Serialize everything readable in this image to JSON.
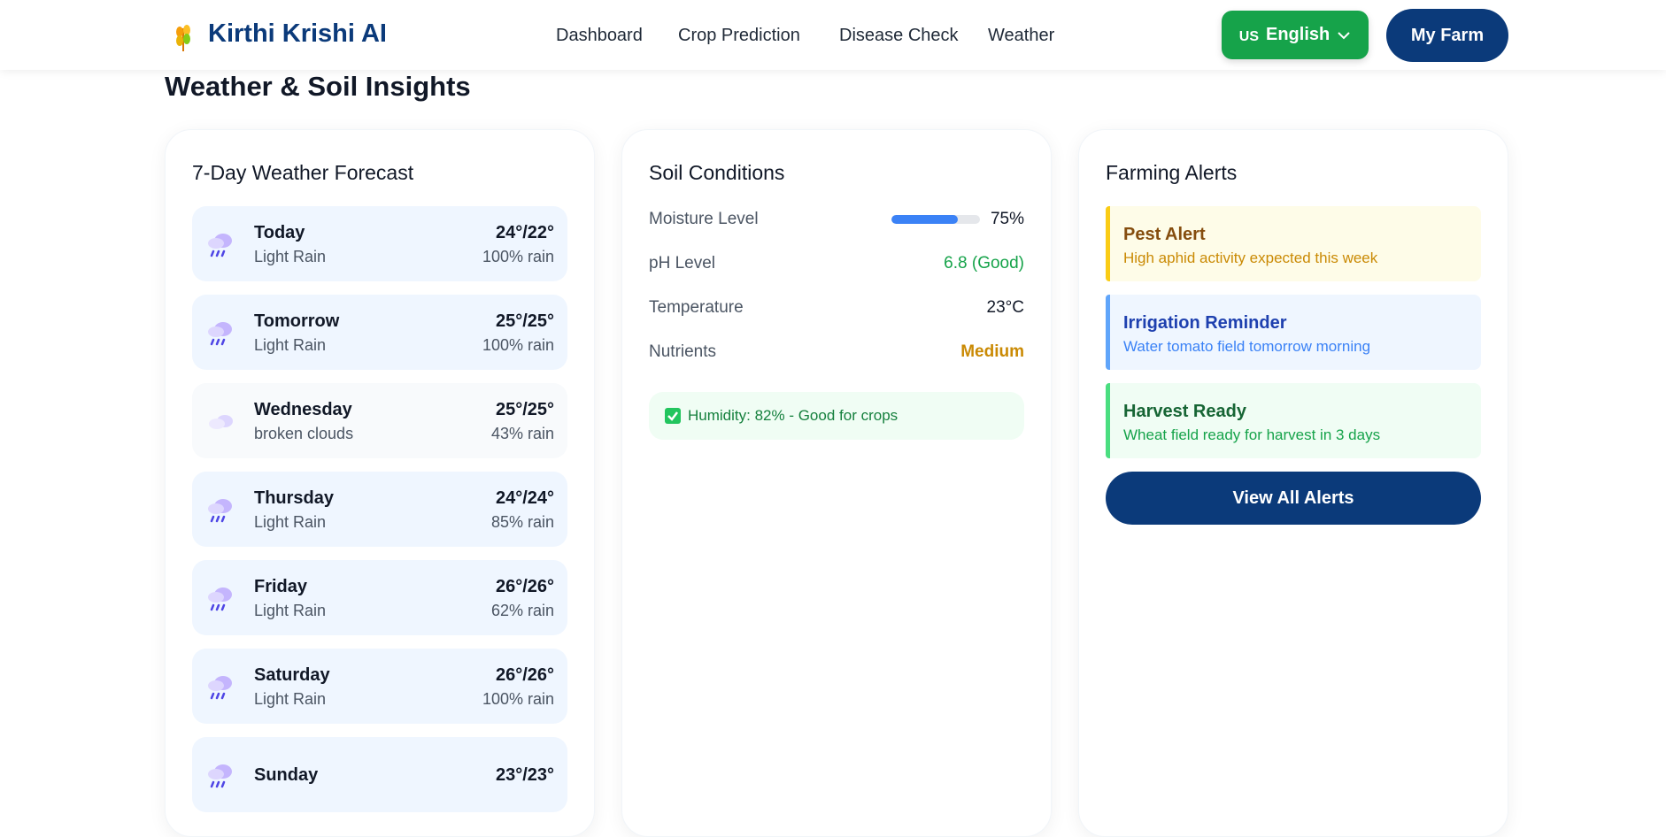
{
  "header": {
    "brand": "Kirthi Krishi AI",
    "nav": [
      "Dashboard",
      "Crop Prediction",
      "Disease Check",
      "Weather"
    ],
    "language": {
      "flag": "US",
      "label": "English"
    },
    "cta": "My Farm"
  },
  "page_title": "Weather & Soil Insights",
  "forecast": {
    "title": "7-Day Weather Forecast",
    "days": [
      {
        "day": "Today",
        "condition": "Light Rain",
        "temp": "24°/22°",
        "rain": "100% rain"
      },
      {
        "day": "Tomorrow",
        "condition": "Light Rain",
        "temp": "25°/25°",
        "rain": "100% rain"
      },
      {
        "day": "Wednesday",
        "condition": "broken clouds",
        "temp": "25°/25°",
        "rain": "43% rain"
      },
      {
        "day": "Thursday",
        "condition": "Light Rain",
        "temp": "24°/24°",
        "rain": "85% rain"
      },
      {
        "day": "Friday",
        "condition": "Light Rain",
        "temp": "26°/26°",
        "rain": "62% rain"
      },
      {
        "day": "Saturday",
        "condition": "Light Rain",
        "temp": "26°/26°",
        "rain": "100% rain"
      },
      {
        "day": "Sunday",
        "temp": "23°/23°"
      }
    ]
  },
  "soil": {
    "title": "Soil Conditions",
    "rows": [
      {
        "label": "Moisture Level",
        "value": 75,
        "value_label": "75%"
      },
      {
        "label": "pH Level",
        "value": "6.8 (Good)"
      },
      {
        "label": "Temperature",
        "value": "23°C"
      },
      {
        "label": "Nutrients",
        "value": "Medium"
      }
    ],
    "note": "Humidity: 82% - Good for crops"
  },
  "alerts": {
    "title": "Farming Alerts",
    "items": [
      {
        "title": "Pest Alert",
        "text": "High aphid activity expected this week"
      },
      {
        "title": "Irrigation Reminder",
        "text": "Water tomato field tomorrow morning"
      },
      {
        "title": "Harvest Ready",
        "text": "Wheat field ready for harvest in 3 days"
      }
    ],
    "button": "View All Alerts"
  }
}
